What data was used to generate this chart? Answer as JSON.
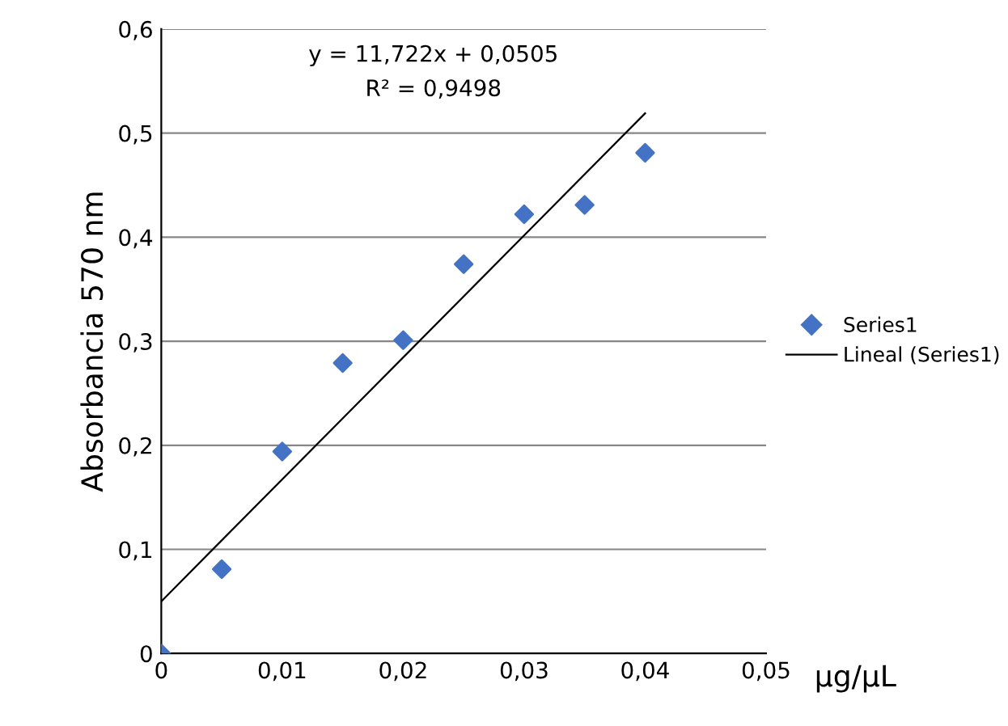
{
  "chart_data": {
    "type": "scatter",
    "xlabel": "µg/µL",
    "ylabel": "Absorbancia 570 nm",
    "annotations": [
      "y = 11,722x + 0,0505",
      "R² = 0,9498"
    ],
    "xlim": [
      0,
      0.05
    ],
    "ylim": [
      0,
      0.6
    ],
    "xticks": [
      {
        "value": 0,
        "label": "0"
      },
      {
        "value": 0.01,
        "label": "0,01"
      },
      {
        "value": 0.02,
        "label": "0,02"
      },
      {
        "value": 0.03,
        "label": "0,03"
      },
      {
        "value": 0.04,
        "label": "0,04"
      },
      {
        "value": 0.05,
        "label": "0,05"
      }
    ],
    "yticks": [
      {
        "value": 0,
        "label": "0"
      },
      {
        "value": 0.1,
        "label": "0,1"
      },
      {
        "value": 0.2,
        "label": "0,2"
      },
      {
        "value": 0.3,
        "label": "0,3"
      },
      {
        "value": 0.4,
        "label": "0,4"
      },
      {
        "value": 0.5,
        "label": "0,5"
      },
      {
        "value": 0.6,
        "label": "0,6"
      }
    ],
    "grid": "y",
    "legend": "right",
    "series": [
      {
        "name": "Series1",
        "marker": "diamond",
        "color": "#4472c4",
        "x": [
          0,
          0.005,
          0.01,
          0.015,
          0.02,
          0.025,
          0.03,
          0.035,
          0.04
        ],
        "values": [
          0,
          0.081,
          0.194,
          0.279,
          0.301,
          0.374,
          0.422,
          0.431,
          0.481
        ]
      },
      {
        "name": "Lineal (Series1)",
        "type": "line",
        "color": "#000000",
        "line_style": "solid",
        "x": [
          0,
          0.04
        ],
        "values": [
          0.05,
          0.519
        ]
      }
    ]
  }
}
